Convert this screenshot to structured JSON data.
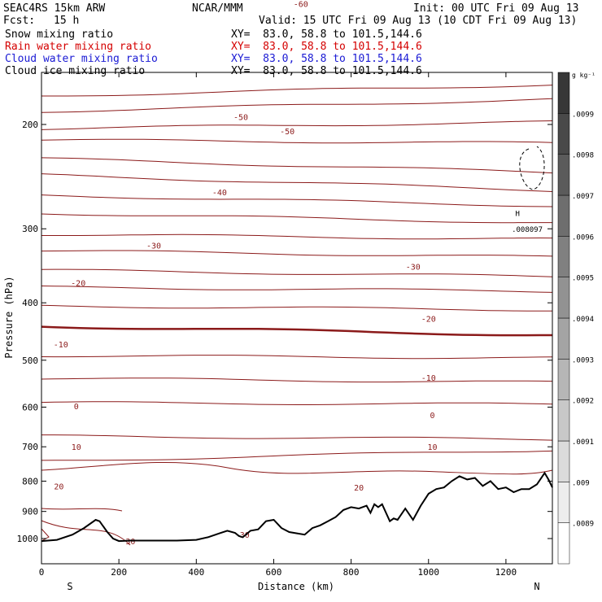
{
  "header": {
    "model": "SEAC4RS 15km ARW",
    "org": "NCAR/MMM",
    "init": "Init: 00 UTC Fri 09 Aug 13",
    "fcst_label": "Fcst:",
    "fcst_value": "15 h",
    "valid": "Valid: 15 UTC Fri 09 Aug 13 (10 CDT Fri 09 Aug 13)"
  },
  "fields": [
    {
      "name": "Snow mixing ratio",
      "xy": "XY=  83.0, 58.8 to 101.5,144.6",
      "color": "#000000"
    },
    {
      "name": "Rain water mixing ratio",
      "xy": "XY=  83.0, 58.8 to 101.5,144.6",
      "color": "#d40000"
    },
    {
      "name": "Cloud water mixing ratio",
      "xy": "XY=  83.0, 58.8 to 101.5,144.6",
      "color": "#1a1ad4"
    },
    {
      "name": "Cloud ice mixing ratio",
      "xy": "XY=  83.0, 58.8 to 101.5,144.6",
      "color": "#000000"
    }
  ],
  "chart_data": {
    "type": "line",
    "xlabel": "Distance (km)",
    "ylabel": "Pressure (hPa)",
    "xlim": [
      0,
      1320
    ],
    "ylim": [
      1050,
      100
    ],
    "y_scale": "log",
    "x_ticks": [
      0,
      200,
      400,
      600,
      800,
      1000,
      1200
    ],
    "y_ticks": [
      200,
      300,
      400,
      500,
      600,
      700,
      800,
      900,
      1000
    ],
    "bottom_labels": {
      "left": "S",
      "right": "N"
    },
    "isotherm_color": "#8b1a1a",
    "isotherm_labels": [
      {
        "text": "-60",
        "x": 670,
        "p": 125
      },
      {
        "text": "-50",
        "x": 515,
        "p": 194
      },
      {
        "text": "-50",
        "x": 635,
        "p": 205
      },
      {
        "text": "-40",
        "x": 460,
        "p": 260
      },
      {
        "text": "-30",
        "x": 290,
        "p": 320
      },
      {
        "text": "-30",
        "x": 960,
        "p": 347
      },
      {
        "text": "-20",
        "x": 95,
        "p": 370
      },
      {
        "text": "-20",
        "x": 1000,
        "p": 425
      },
      {
        "text": "-10",
        "x": 50,
        "p": 470
      },
      {
        "text": "-10",
        "x": 1000,
        "p": 535
      },
      {
        "text": "0",
        "x": 90,
        "p": 597
      },
      {
        "text": "0",
        "x": 1010,
        "p": 618
      },
      {
        "text": "10",
        "x": 90,
        "p": 700
      },
      {
        "text": "10",
        "x": 1010,
        "p": 700
      },
      {
        "text": "20",
        "x": 45,
        "p": 815
      },
      {
        "text": "20",
        "x": 820,
        "p": 820
      },
      {
        "text": "30",
        "x": 230,
        "p": 1010
      },
      {
        "text": "30",
        "x": 525,
        "p": 985
      },
      {
        "text": "H",
        "x": 1230,
        "p": 282
      },
      {
        "text": ".008097",
        "x": 1255,
        "p": 300
      }
    ],
    "terrain": {
      "x": [
        0,
        40,
        80,
        110,
        140,
        150,
        170,
        185,
        200,
        230,
        300,
        350,
        400,
        430,
        460,
        480,
        500,
        510,
        520,
        540,
        560,
        580,
        600,
        620,
        640,
        660,
        680,
        700,
        720,
        740,
        760,
        780,
        800,
        820,
        840,
        850,
        860,
        870,
        880,
        900,
        910,
        920,
        940,
        960,
        980,
        1000,
        1020,
        1040,
        1060,
        1080,
        1100,
        1120,
        1140,
        1160,
        1180,
        1200,
        1220,
        1240,
        1260,
        1280,
        1300,
        1310,
        1320
      ],
      "y": [
        1010,
        1005,
        985,
        960,
        930,
        935,
        975,
        1000,
        1010,
        1008,
        1008,
        1008,
        1005,
        995,
        980,
        970,
        978,
        990,
        995,
        970,
        965,
        935,
        930,
        960,
        975,
        980,
        985,
        960,
        950,
        935,
        920,
        895,
        885,
        890,
        880,
        905,
        875,
        885,
        875,
        935,
        925,
        930,
        890,
        930,
        880,
        840,
        825,
        820,
        800,
        785,
        795,
        790,
        815,
        800,
        825,
        820,
        835,
        825,
        825,
        810,
        775,
        795,
        820
      ]
    },
    "colorbar": {
      "unit": "g kg⁻¹",
      "labels": [
        ".0089",
        ".009",
        ".0091",
        ".0092",
        ".0093",
        ".0094",
        ".0095",
        ".0096",
        ".0097",
        ".0098",
        ".0099"
      ]
    }
  }
}
